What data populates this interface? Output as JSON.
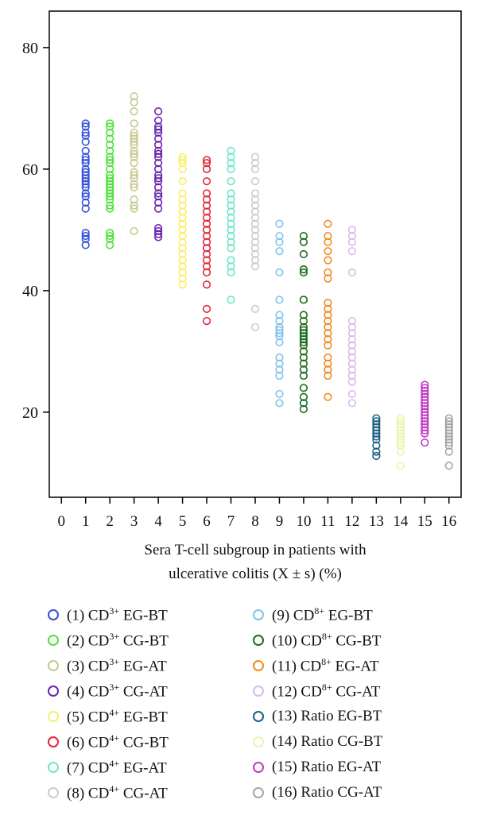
{
  "chart_data": {
    "type": "scatter",
    "xlabel_line1": "Sera T-cell subgroup in patients with",
    "xlabel_line2": "ulcerative colitis (X ± s) (%)",
    "ylabel": "",
    "xlim": [
      -0.5,
      16.5
    ],
    "ylim": [
      6,
      86
    ],
    "xticks": [
      0,
      1,
      2,
      3,
      4,
      5,
      6,
      7,
      8,
      9,
      10,
      11,
      12,
      13,
      14,
      15,
      16
    ],
    "yticks": [
      20,
      40,
      60,
      80
    ],
    "grid": false,
    "legend_position": "bottom",
    "series": [
      {
        "name": "(1) CD",
        "sup": "3+",
        "suffix": " EG-BT",
        "x": 1,
        "color": "#3550d8",
        "values": [
          47.5,
          48.5,
          49,
          49.5,
          53.5,
          54.5,
          55.5,
          56,
          57,
          57.5,
          58,
          58.5,
          59,
          59.5,
          60,
          61,
          61.5,
          62,
          63,
          64.5,
          65.5,
          66,
          67,
          67.5
        ]
      },
      {
        "name": "(2) CD",
        "sup": "3+",
        "suffix": " CG-BT",
        "x": 2,
        "color": "#4ee23a",
        "values": [
          47.5,
          48.5,
          49,
          49.5,
          53.5,
          54,
          55,
          55.5,
          56,
          56.5,
          57,
          57.5,
          58,
          58.5,
          59,
          60,
          61,
          61.5,
          62,
          63,
          64,
          65,
          66,
          67,
          67.5
        ]
      },
      {
        "name": "(3) CD",
        "sup": "3+",
        "suffix": " EG-AT",
        "x": 3,
        "color": "#c8c890",
        "values": [
          49.8,
          53.5,
          54,
          55,
          57,
          57.5,
          58.5,
          59,
          59.5,
          61,
          62,
          62.5,
          63,
          64,
          64.5,
          65,
          65.5,
          66,
          67.5,
          69.5,
          71,
          72
        ]
      },
      {
        "name": "(4) CD",
        "sup": "3+",
        "suffix": " CG-AT",
        "x": 4,
        "color": "#6a22b0",
        "values": [
          48.8,
          49.3,
          49.8,
          50.3,
          53.5,
          54.5,
          55.5,
          56,
          57,
          58,
          58.5,
          59,
          60,
          61,
          62,
          62.5,
          63,
          64,
          65,
          66,
          66.5,
          67,
          68,
          69.5
        ]
      },
      {
        "name": "(5) CD",
        "sup": "4+",
        "suffix": " EG-BT",
        "x": 5,
        "color": "#f6f06a",
        "values": [
          41,
          42,
          43,
          44,
          45,
          46,
          47,
          48,
          49,
          50,
          51,
          52,
          53,
          54,
          55,
          56,
          58,
          60,
          61,
          61.5,
          62
        ]
      },
      {
        "name": "(6) CD",
        "sup": "4+",
        "suffix": " CG-BT",
        "x": 6,
        "color": "#e02838",
        "values": [
          35,
          37,
          41,
          43,
          44,
          45,
          46,
          47,
          48,
          49,
          50,
          51,
          52,
          53,
          54,
          55,
          56,
          58,
          60,
          61,
          61.5
        ]
      },
      {
        "name": "(7) CD",
        "sup": "4+",
        "suffix": " EG-AT",
        "x": 7,
        "color": "#6ee6c8",
        "values": [
          38.5,
          43,
          44,
          45,
          47,
          48,
          49,
          50,
          51,
          52,
          53,
          54,
          55,
          56,
          58,
          60,
          61,
          62,
          63
        ]
      },
      {
        "name": "(8) CD",
        "sup": "4+",
        "suffix": " CG-AT",
        "x": 8,
        "color": "#cccccc",
        "values": [
          34,
          37,
          44,
          45,
          46,
          47,
          48,
          49,
          50,
          51,
          52,
          53,
          54,
          55,
          56,
          58,
          60,
          61,
          62
        ]
      },
      {
        "name": "(9) CD",
        "sup": "8+",
        "suffix": " EG-BT",
        "x": 9,
        "color": "#7ec4ea",
        "values": [
          21.5,
          23,
          26,
          27,
          28,
          29,
          31.5,
          32.5,
          33,
          33.5,
          34,
          35,
          36,
          38.5,
          43,
          46.5,
          48,
          49,
          51
        ]
      },
      {
        "name": "(10) CD",
        "sup": "8+",
        "suffix": " CG-BT",
        "x": 10,
        "color": "#1d6b1d",
        "values": [
          20.5,
          21.5,
          22.5,
          24,
          26,
          27,
          28,
          29,
          30,
          31,
          31.5,
          32,
          32.5,
          33,
          33.5,
          34,
          35,
          36,
          38.5,
          43,
          43.5,
          46,
          48,
          49
        ]
      },
      {
        "name": "(11) CD",
        "sup": "8+",
        "suffix": " EG-AT",
        "x": 11,
        "color": "#f08a1c",
        "values": [
          22.5,
          26,
          27,
          28,
          29,
          31,
          32,
          33,
          34,
          35,
          36,
          37,
          38,
          42,
          43,
          45,
          46.5,
          48,
          49,
          51
        ]
      },
      {
        "name": "(12) CD",
        "sup": "8+",
        "suffix": " CG-AT",
        "x": 12,
        "color": "#dcb8ec",
        "values": [
          21.5,
          23,
          25,
          26,
          27,
          28,
          29,
          30,
          31,
          32,
          33,
          34,
          35,
          43,
          46.5,
          48,
          49,
          50
        ]
      },
      {
        "name": "(13) Ratio EG-BT",
        "sup": "",
        "suffix": "",
        "x": 13,
        "color": "#1f5f82",
        "values": [
          12.8,
          13.5,
          14.5,
          15.5,
          16,
          16.5,
          17,
          17.5,
          18,
          18.5,
          19
        ]
      },
      {
        "name": "(14) Ratio CG-BT",
        "sup": "",
        "suffix": "",
        "x": 14,
        "color": "#e6f7b0",
        "values": [
          11.2,
          13.5,
          14.5,
          15,
          15.5,
          16,
          16.5,
          17,
          17.5,
          18,
          18.5,
          19
        ]
      },
      {
        "name": "(15) Ratio EG-AT",
        "sup": "",
        "suffix": "",
        "x": 15,
        "color": "#c03cc0",
        "values": [
          15,
          16.5,
          17,
          17.5,
          18,
          18.5,
          19,
          19.5,
          20,
          20.5,
          21,
          21.5,
          22,
          22.5,
          23,
          23.5,
          24,
          24.5
        ]
      },
      {
        "name": "(16) Ratio CG-AT",
        "sup": "",
        "suffix": "",
        "x": 16,
        "color": "#a0a8a4",
        "values": [
          11.2,
          13.5,
          14.5,
          15,
          15.5,
          16,
          16.5,
          17,
          17.5,
          18,
          18.5,
          19
        ]
      }
    ]
  }
}
